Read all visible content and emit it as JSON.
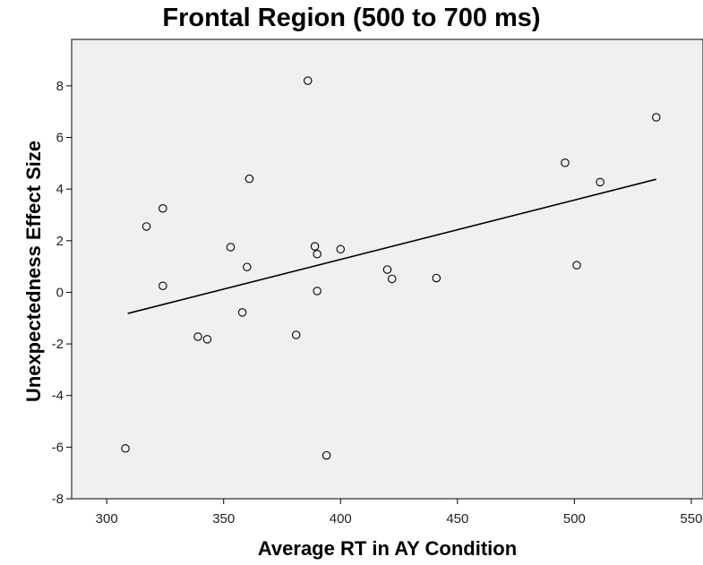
{
  "chart_data": {
    "type": "scatter",
    "title": "Frontal Region (500 to 700 ms)",
    "xlabel": "Average RT in AY Condition",
    "ylabel": "Unexpectedness Effect Size",
    "xlim": [
      285,
      555
    ],
    "ylim": [
      -8,
      9.8
    ],
    "x_ticks": [
      300,
      350,
      400,
      450,
      500,
      550
    ],
    "y_ticks": [
      -8,
      -6,
      -4,
      -2,
      0,
      2,
      4,
      6,
      8
    ],
    "grid": false,
    "plot_background": "#f0f0f0",
    "marker": "open-circle",
    "points": [
      {
        "x": 308,
        "y": -6.05
      },
      {
        "x": 317,
        "y": 2.55
      },
      {
        "x": 324,
        "y": 3.25
      },
      {
        "x": 324,
        "y": 0.25
      },
      {
        "x": 339,
        "y": -1.72
      },
      {
        "x": 343,
        "y": -1.82
      },
      {
        "x": 353,
        "y": 1.75
      },
      {
        "x": 358,
        "y": -0.78
      },
      {
        "x": 360,
        "y": 0.98
      },
      {
        "x": 361,
        "y": 4.4
      },
      {
        "x": 381,
        "y": -1.65
      },
      {
        "x": 386,
        "y": 8.2
      },
      {
        "x": 389,
        "y": 1.78
      },
      {
        "x": 390,
        "y": 1.48
      },
      {
        "x": 390,
        "y": 0.05
      },
      {
        "x": 394,
        "y": -6.32
      },
      {
        "x": 400,
        "y": 1.67
      },
      {
        "x": 420,
        "y": 0.88
      },
      {
        "x": 422,
        "y": 0.52
      },
      {
        "x": 441,
        "y": 0.55
      },
      {
        "x": 496,
        "y": 5.02
      },
      {
        "x": 501,
        "y": 1.05
      },
      {
        "x": 511,
        "y": 4.27
      },
      {
        "x": 535,
        "y": 6.78
      }
    ],
    "fit_line": {
      "x": [
        309,
        535
      ],
      "y": [
        -0.82,
        4.38
      ]
    }
  }
}
